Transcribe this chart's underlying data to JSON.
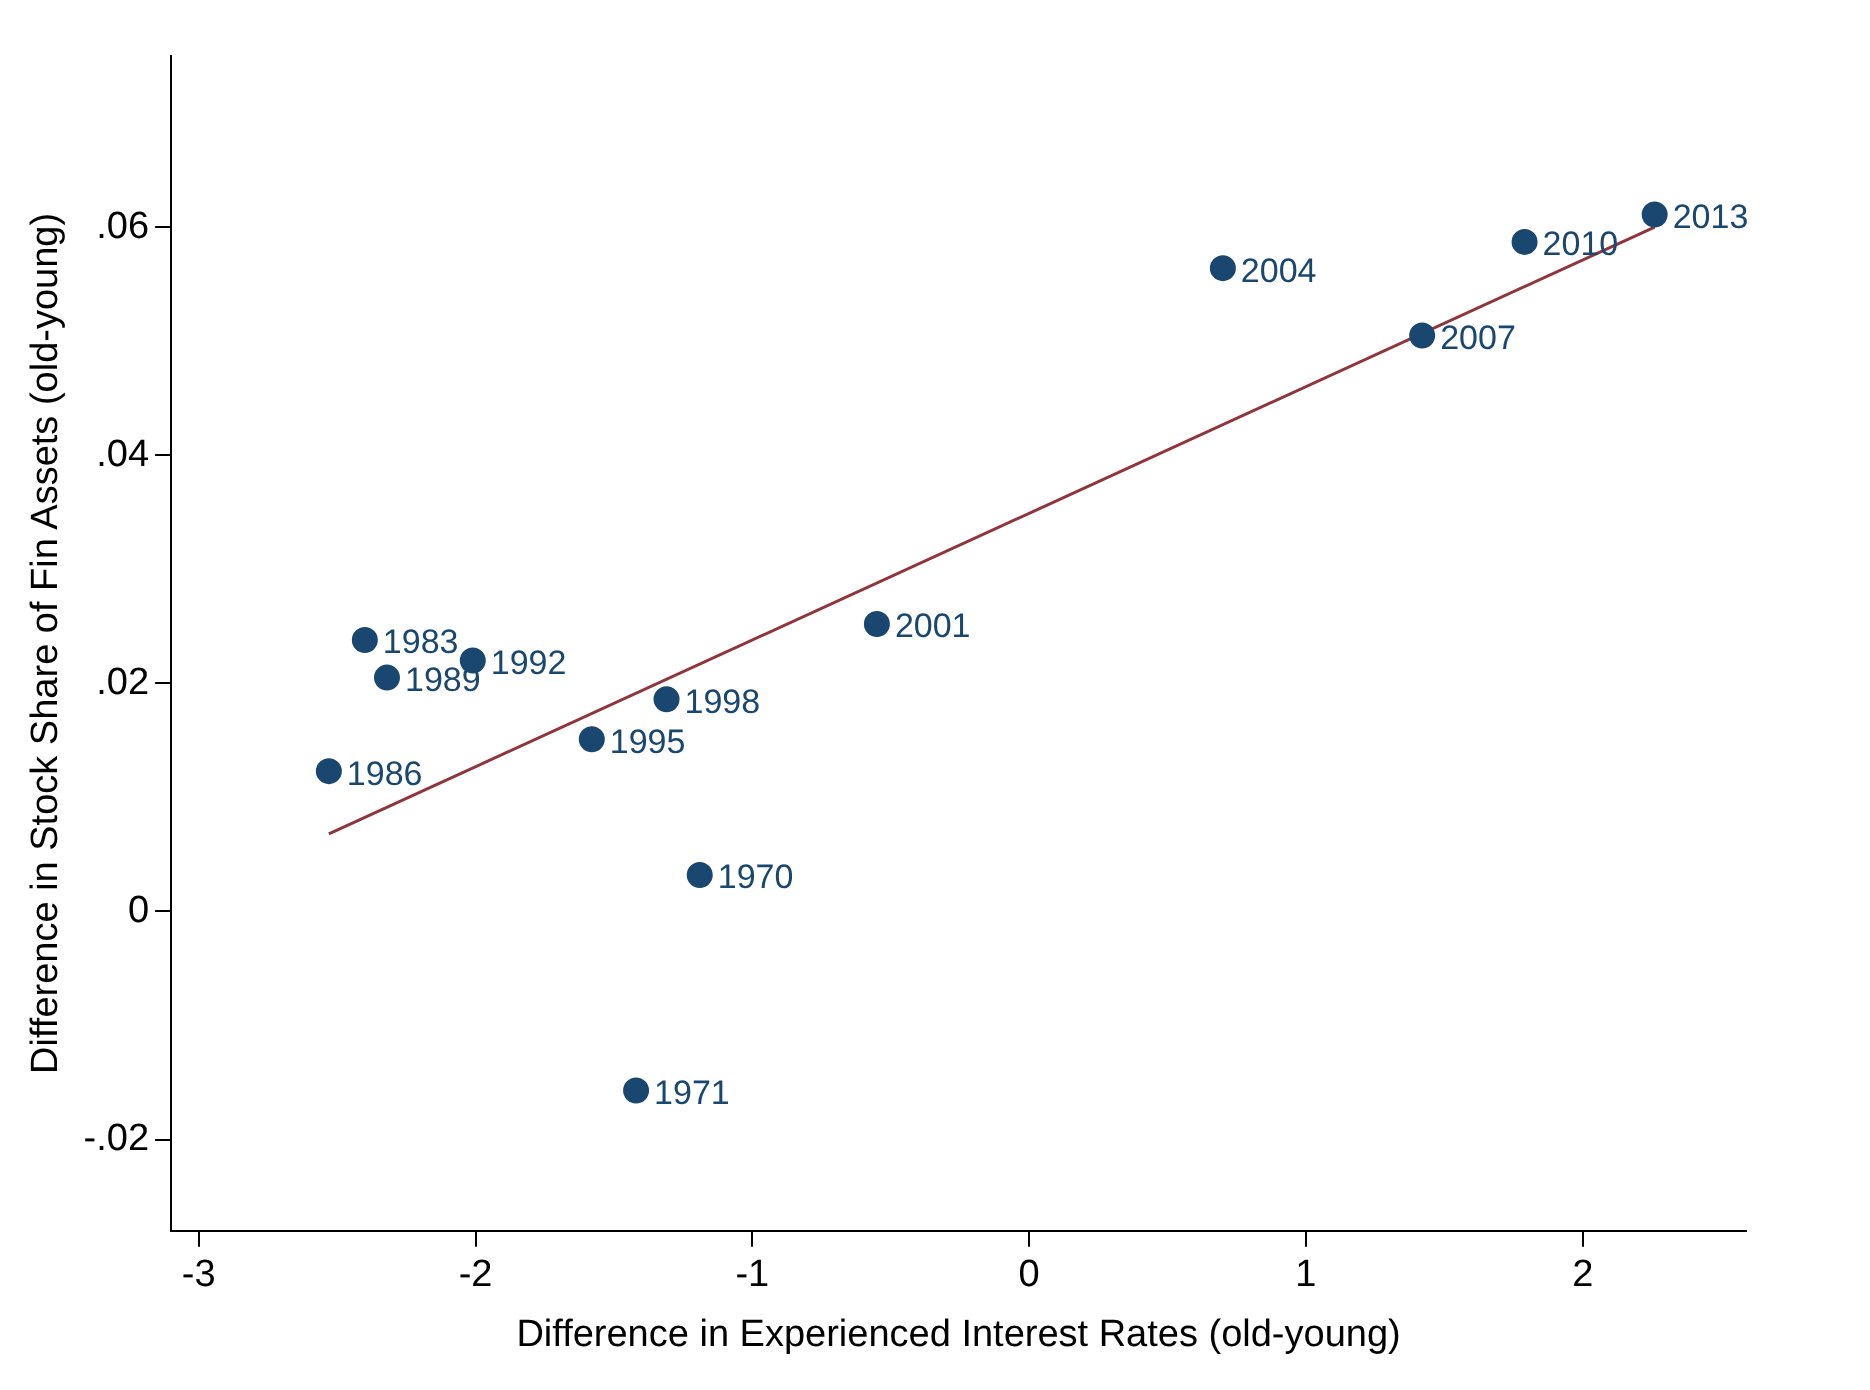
{
  "chart_data": {
    "type": "scatter",
    "xlabel": "Difference in Experienced Interest Rates (old-young)",
    "ylabel": "Difference in Stock Share of Fin Assets (old-young)",
    "xlim": [
      -3.1,
      2.59
    ],
    "ylim": [
      -0.028,
      0.075
    ],
    "xticks": [
      -3,
      -2,
      -1,
      0,
      1,
      2
    ],
    "yticks": [
      {
        "value": -0.02,
        "label": "-.02"
      },
      {
        "value": 0,
        "label": "0"
      },
      {
        "value": 0.02,
        "label": ".02"
      },
      {
        "value": 0.04,
        "label": ".04"
      },
      {
        "value": 0.06,
        "label": ".06"
      }
    ],
    "grid": false,
    "legend": false,
    "marker": "circle",
    "series": [
      {
        "color": "#1a476f",
        "x": [
          -2.4,
          -2.32,
          -2.01,
          -2.53,
          -1.58,
          -1.31,
          -1.19,
          -1.42,
          -0.55,
          0.7,
          1.42,
          1.79,
          2.26
        ],
        "values": [
          0.0238,
          0.0205,
          0.022,
          0.0123,
          0.0151,
          0.0186,
          0.0032,
          -0.0157,
          0.0252,
          0.0564,
          0.0505,
          0.0587,
          0.0611
        ]
      },
      {
        "type": "line",
        "color": "#90353b",
        "x": [
          -2.53,
          2.26
        ],
        "values": [
          0.0068,
          0.06
        ],
        "marker": "none"
      }
    ],
    "annotations": [
      {
        "text": "1983",
        "x": -2.4,
        "y": 0.0238
      },
      {
        "text": "1989",
        "x": -2.32,
        "y": 0.0205
      },
      {
        "text": "1992",
        "x": -2.01,
        "y": 0.022
      },
      {
        "text": "1986",
        "x": -2.53,
        "y": 0.0123
      },
      {
        "text": "1995",
        "x": -1.58,
        "y": 0.0151
      },
      {
        "text": "1998",
        "x": -1.31,
        "y": 0.0186
      },
      {
        "text": "1970",
        "x": -1.19,
        "y": 0.0032
      },
      {
        "text": "1971",
        "x": -1.42,
        "y": -0.0157
      },
      {
        "text": "2001",
        "x": -0.55,
        "y": 0.0252
      },
      {
        "text": "2004",
        "x": 0.7,
        "y": 0.0564
      },
      {
        "text": "2007",
        "x": 1.42,
        "y": 0.0505
      },
      {
        "text": "2010",
        "x": 1.79,
        "y": 0.0587
      },
      {
        "text": "2013",
        "x": 2.26,
        "y": 0.0611
      }
    ]
  }
}
